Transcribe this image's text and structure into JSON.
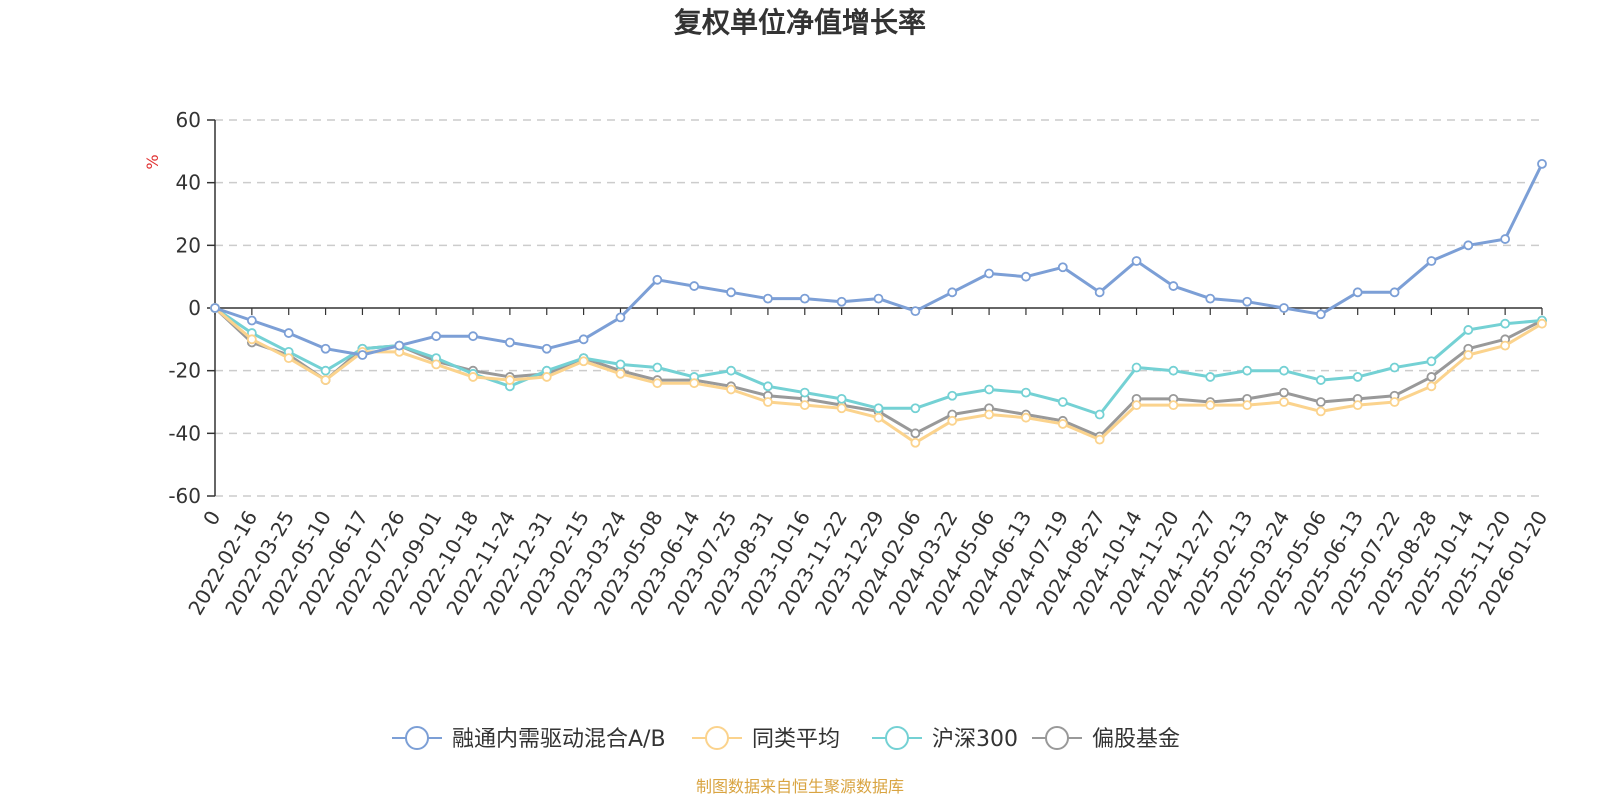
{
  "chart_data": {
    "type": "line",
    "title": "复权单位净值增长率",
    "ylabel": "%",
    "ylim": [
      -60,
      60
    ],
    "yticks": [
      60,
      40,
      20,
      0,
      -20,
      -40,
      -60
    ],
    "grid": true,
    "legend_position": "bottom",
    "x": [
      "0",
      "2022-02-16",
      "2022-03-25",
      "2022-05-10",
      "2022-06-17",
      "2022-07-26",
      "2022-09-01",
      "2022-10-18",
      "2022-11-24",
      "2022-12-31",
      "2023-02-15",
      "2023-03-24",
      "2023-05-08",
      "2023-06-14",
      "2023-07-25",
      "2023-08-31",
      "2023-10-16",
      "2023-11-22",
      "2023-12-29",
      "2024-02-06",
      "2024-03-22",
      "2024-05-06",
      "2024-06-13",
      "2024-07-19",
      "2024-08-27",
      "2024-10-14",
      "2024-11-20",
      "2024-12-27",
      "2025-02-13",
      "2025-03-24",
      "2025-05-06",
      "2025-06-13",
      "2025-07-22",
      "2025-08-28",
      "2025-10-14",
      "2025-11-20",
      "2026-01-20"
    ],
    "series": [
      {
        "name": "融通内需驱动混合A/B",
        "color": "#7c9fd6",
        "values": [
          0,
          -4,
          -8,
          -13,
          -15,
          -12,
          -9,
          -9,
          -11,
          -13,
          -10,
          -3,
          9,
          7,
          5,
          3,
          3,
          2,
          3,
          -1,
          5,
          11,
          10,
          13,
          5,
          15,
          7,
          3,
          2,
          0,
          -2,
          5,
          5,
          15,
          20,
          22,
          46
        ]
      },
      {
        "name": "同类平均",
        "color": "#fbd38d",
        "values": [
          0,
          -10,
          -16,
          -23,
          -14,
          -14,
          -18,
          -22,
          -23,
          -22,
          -17,
          -21,
          -24,
          -24,
          -26,
          -30,
          -31,
          -32,
          -35,
          -43,
          -36,
          -34,
          -35,
          -37,
          -42,
          -31,
          -31,
          -31,
          -31,
          -30,
          -33,
          -31,
          -30,
          -25,
          -15,
          -12,
          -5
        ]
      },
      {
        "name": "沪深300",
        "color": "#74d1d4",
        "values": [
          0,
          -8,
          -14,
          -20,
          -13,
          -12,
          -16,
          -21,
          -25,
          -20,
          -16,
          -18,
          -19,
          -22,
          -20,
          -25,
          -27,
          -29,
          -32,
          -32,
          -28,
          -26,
          -27,
          -30,
          -34,
          -19,
          -20,
          -22,
          -20,
          -20,
          -23,
          -22,
          -19,
          -17,
          -7,
          -5,
          -4
        ]
      },
      {
        "name": "偏股基金",
        "color": "#999999",
        "values": [
          0,
          -11,
          -15,
          -23,
          -13,
          -12,
          -17,
          -20,
          -22,
          -21,
          -16,
          -20,
          -23,
          -23,
          -25,
          -28,
          -29,
          -31,
          -33,
          -40,
          -34,
          -32,
          -34,
          -36,
          -41,
          -29,
          -29,
          -30,
          -29,
          -27,
          -30,
          -29,
          -28,
          -22,
          -13,
          -10,
          -4
        ]
      }
    ]
  },
  "source": "制图数据来自恒生聚源数据库"
}
